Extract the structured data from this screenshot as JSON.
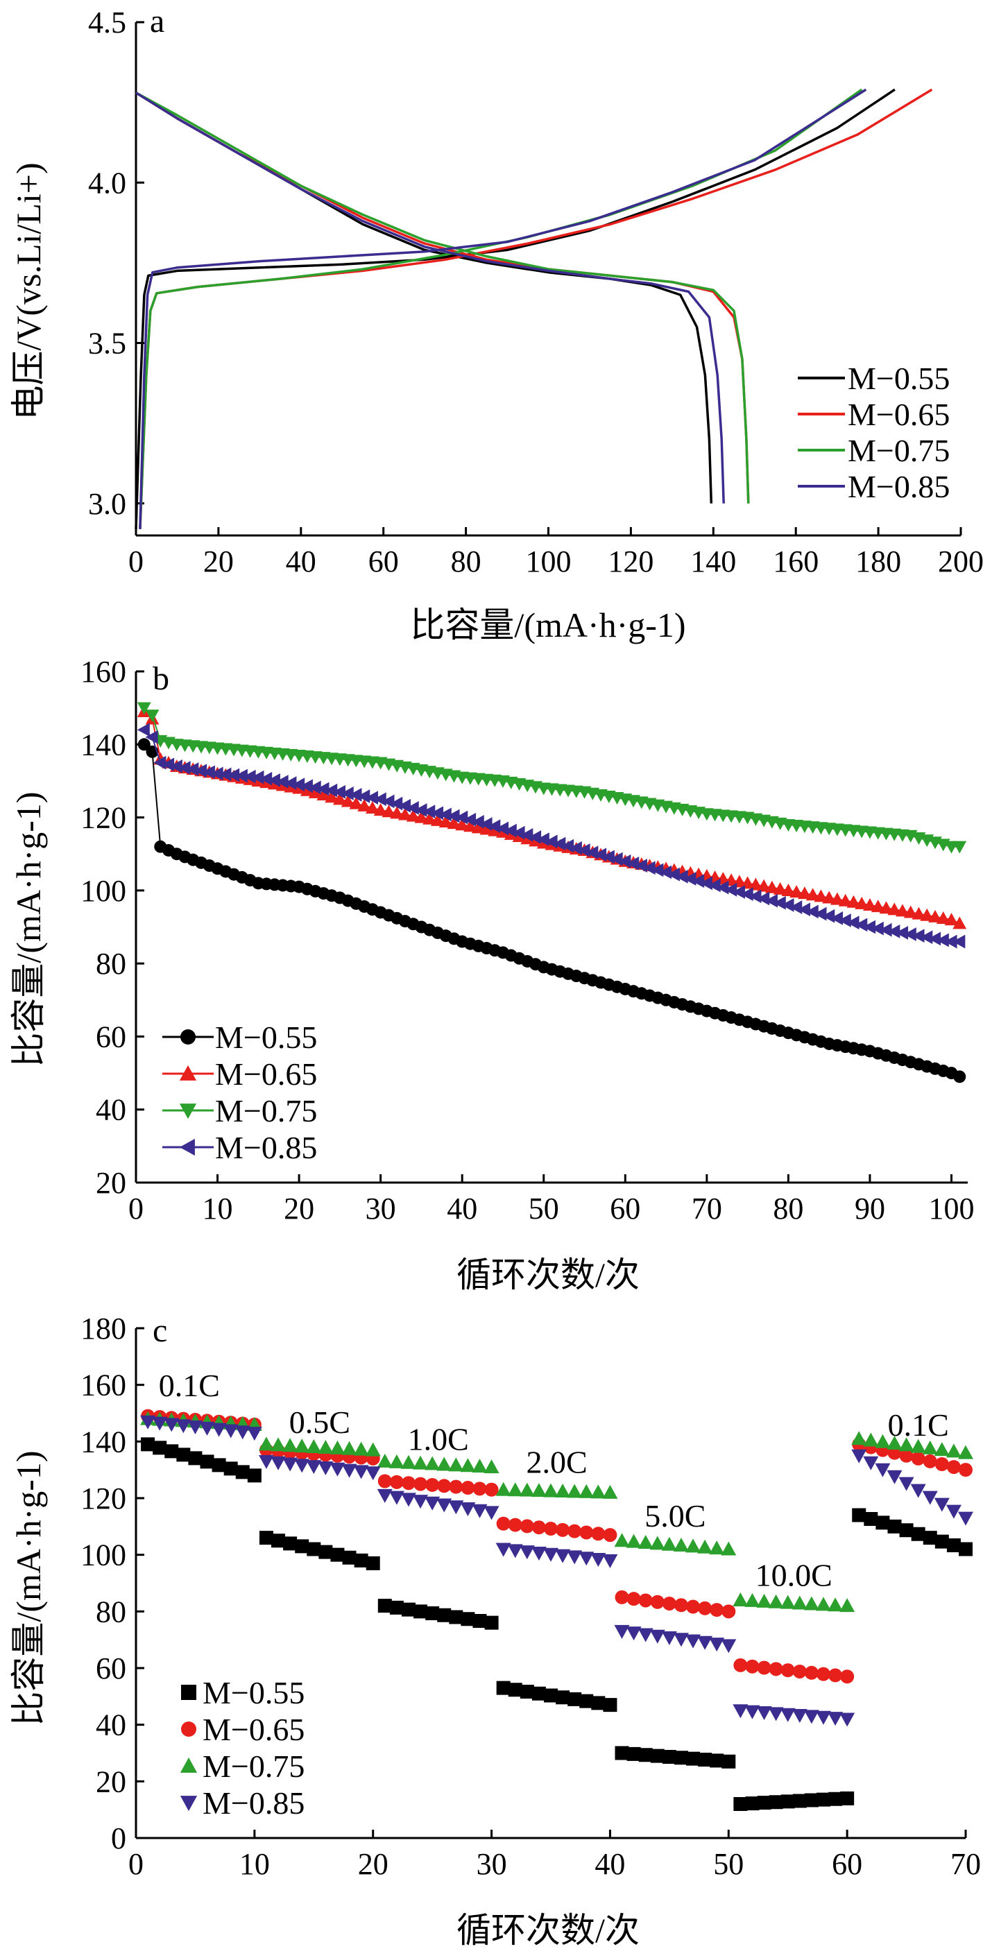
{
  "chart_data": [
    {
      "panel": "a",
      "type": "line",
      "xlabel": "比容量/(mA·h·g-1)",
      "ylabel": "电压/V(vs.Li/Li+)",
      "xlim": [
        0,
        200
      ],
      "ylim": [
        2.9,
        4.5
      ],
      "xticks": [
        0,
        20,
        40,
        60,
        80,
        100,
        120,
        140,
        160,
        180,
        200
      ],
      "yticks": [
        3.0,
        3.5,
        4.0,
        4.5
      ],
      "legend": "bottom-right",
      "series": [
        {
          "name": "M−0.55",
          "color": "#000000",
          "charge": [
            [
              0,
              2.92
            ],
            [
              1.2,
              3.4
            ],
            [
              2,
              3.65
            ],
            [
              3,
              3.71
            ],
            [
              10,
              3.725
            ],
            [
              30,
              3.735
            ],
            [
              50,
              3.745
            ],
            [
              70,
              3.76
            ],
            [
              90,
              3.79
            ],
            [
              110,
              3.85
            ],
            [
              130,
              3.94
            ],
            [
              150,
              4.04
            ],
            [
              170,
              4.17
            ],
            [
              184,
              4.29
            ]
          ],
          "discharge": [
            [
              0,
              4.28
            ],
            [
              10,
              4.2
            ],
            [
              25,
              4.09
            ],
            [
              40,
              3.98
            ],
            [
              55,
              3.87
            ],
            [
              70,
              3.79
            ],
            [
              85,
              3.75
            ],
            [
              100,
              3.72
            ],
            [
              115,
              3.7
            ],
            [
              125,
              3.68
            ],
            [
              132,
              3.65
            ],
            [
              136,
              3.55
            ],
            [
              138,
              3.4
            ],
            [
              139,
              3.2
            ],
            [
              139.5,
              3.0
            ]
          ]
        },
        {
          "name": "M−0.65",
          "color": "#e8201c",
          "charge": [
            [
              1,
              2.92
            ],
            [
              2.5,
              3.4
            ],
            [
              3.5,
              3.6
            ],
            [
              5,
              3.655
            ],
            [
              15,
              3.675
            ],
            [
              35,
              3.7
            ],
            [
              55,
              3.725
            ],
            [
              75,
              3.76
            ],
            [
              95,
              3.81
            ],
            [
              115,
              3.87
            ],
            [
              135,
              3.95
            ],
            [
              155,
              4.04
            ],
            [
              175,
              4.15
            ],
            [
              193,
              4.29
            ]
          ],
          "discharge": [
            [
              0,
              4.28
            ],
            [
              10,
              4.2
            ],
            [
              25,
              4.09
            ],
            [
              40,
              3.99
            ],
            [
              55,
              3.89
            ],
            [
              70,
              3.81
            ],
            [
              85,
              3.76
            ],
            [
              100,
              3.73
            ],
            [
              115,
              3.71
            ],
            [
              130,
              3.69
            ],
            [
              140,
              3.66
            ],
            [
              145,
              3.58
            ],
            [
              147,
              3.45
            ],
            [
              148,
              3.2
            ],
            [
              148.5,
              3.0
            ]
          ]
        },
        {
          "name": "M−0.75",
          "color": "#2ca02c",
          "charge": [
            [
              1,
              2.92
            ],
            [
              2.5,
              3.4
            ],
            [
              3.5,
              3.6
            ],
            [
              5,
              3.655
            ],
            [
              15,
              3.675
            ],
            [
              35,
              3.7
            ],
            [
              55,
              3.73
            ],
            [
              75,
              3.775
            ],
            [
              95,
              3.83
            ],
            [
              115,
              3.9
            ],
            [
              135,
              3.99
            ],
            [
              155,
              4.1
            ],
            [
              176,
              4.29
            ]
          ],
          "discharge": [
            [
              0,
              4.28
            ],
            [
              10,
              4.21
            ],
            [
              25,
              4.1
            ],
            [
              40,
              3.99
            ],
            [
              55,
              3.9
            ],
            [
              70,
              3.82
            ],
            [
              85,
              3.77
            ],
            [
              100,
              3.73
            ],
            [
              115,
              3.71
            ],
            [
              130,
              3.69
            ],
            [
              140,
              3.665
            ],
            [
              145,
              3.6
            ],
            [
              147,
              3.45
            ],
            [
              148,
              3.2
            ],
            [
              148.5,
              3.0
            ]
          ]
        },
        {
          "name": "M−0.85",
          "color": "#3b2d8f",
          "charge": [
            [
              1,
              2.92
            ],
            [
              2,
              3.4
            ],
            [
              2.8,
              3.65
            ],
            [
              4,
              3.72
            ],
            [
              10,
              3.735
            ],
            [
              30,
              3.755
            ],
            [
              50,
              3.77
            ],
            [
              70,
              3.785
            ],
            [
              90,
              3.815
            ],
            [
              110,
              3.88
            ],
            [
              130,
              3.97
            ],
            [
              150,
              4.07
            ],
            [
              177,
              4.29
            ]
          ],
          "discharge": [
            [
              0,
              4.28
            ],
            [
              10,
              4.2
            ],
            [
              25,
              4.09
            ],
            [
              40,
              3.98
            ],
            [
              55,
              3.88
            ],
            [
              70,
              3.8
            ],
            [
              85,
              3.755
            ],
            [
              100,
              3.725
            ],
            [
              115,
              3.7
            ],
            [
              125,
              3.685
            ],
            [
              134,
              3.66
            ],
            [
              139,
              3.58
            ],
            [
              141,
              3.4
            ],
            [
              142,
              3.2
            ],
            [
              142.5,
              3.0
            ]
          ]
        }
      ]
    },
    {
      "panel": "b",
      "type": "line",
      "xlabel": "循环次数/次",
      "ylabel": "比容量/(mA·h·g-1)",
      "xlim": [
        0,
        102
      ],
      "ylim": [
        20,
        160
      ],
      "xticks": [
        0,
        10,
        20,
        30,
        40,
        50,
        60,
        70,
        80,
        90,
        100
      ],
      "yticks": [
        20,
        40,
        60,
        80,
        100,
        120,
        140,
        160
      ],
      "legend": "bottom-left",
      "series": [
        {
          "name": "M−0.55",
          "marker": "circle",
          "color": "#000000",
          "points": [
            [
              1,
              140
            ],
            [
              2,
              138
            ],
            [
              3,
              112
            ],
            [
              5,
              110
            ],
            [
              10,
              106
            ],
            [
              15,
              102
            ],
            [
              20,
              101
            ],
            [
              25,
              98
            ],
            [
              30,
              94
            ],
            [
              35,
              90
            ],
            [
              40,
              86
            ],
            [
              45,
              83
            ],
            [
              50,
              79
            ],
            [
              55,
              76
            ],
            [
              60,
              73
            ],
            [
              65,
              70
            ],
            [
              70,
              67
            ],
            [
              75,
              64
            ],
            [
              80,
              61
            ],
            [
              85,
              58
            ],
            [
              90,
              56
            ],
            [
              95,
              53
            ],
            [
              100,
              50
            ],
            [
              101,
              49
            ]
          ]
        },
        {
          "name": "M−0.65",
          "marker": "triangle-up",
          "color": "#e8201c",
          "points": [
            [
              1,
              149
            ],
            [
              2,
              147
            ],
            [
              3,
              136
            ],
            [
              5,
              134
            ],
            [
              10,
              132
            ],
            [
              15,
              130
            ],
            [
              20,
              128
            ],
            [
              25,
              125
            ],
            [
              30,
              122
            ],
            [
              35,
              120
            ],
            [
              40,
              118
            ],
            [
              45,
              116
            ],
            [
              50,
              113
            ],
            [
              55,
              111
            ],
            [
              60,
              108
            ],
            [
              65,
              106
            ],
            [
              70,
              104
            ],
            [
              75,
              102
            ],
            [
              80,
              100
            ],
            [
              85,
              98
            ],
            [
              90,
              96
            ],
            [
              95,
              94
            ],
            [
              100,
              92
            ],
            [
              101,
              91
            ]
          ]
        },
        {
          "name": "M−0.75",
          "marker": "triangle-down",
          "color": "#2ca02c",
          "points": [
            [
              1,
              150
            ],
            [
              2,
              148
            ],
            [
              3,
              141
            ],
            [
              5,
              140
            ],
            [
              10,
              139
            ],
            [
              15,
              138
            ],
            [
              20,
              137
            ],
            [
              25,
              136
            ],
            [
              30,
              135
            ],
            [
              35,
              133
            ],
            [
              40,
              131
            ],
            [
              45,
              130
            ],
            [
              50,
              128
            ],
            [
              55,
              127
            ],
            [
              60,
              125
            ],
            [
              65,
              123
            ],
            [
              70,
              121
            ],
            [
              75,
              120
            ],
            [
              80,
              118
            ],
            [
              85,
              117
            ],
            [
              90,
              116
            ],
            [
              95,
              115
            ],
            [
              100,
              112
            ],
            [
              101,
              112
            ]
          ]
        },
        {
          "name": "M−0.85",
          "marker": "triangle-left",
          "color": "#3b2d8f",
          "points": [
            [
              1,
              144
            ],
            [
              2,
              142
            ],
            [
              3,
              135
            ],
            [
              5,
              134
            ],
            [
              10,
              132
            ],
            [
              15,
              131
            ],
            [
              20,
              129
            ],
            [
              25,
              127
            ],
            [
              30,
              125
            ],
            [
              35,
              122
            ],
            [
              40,
              120
            ],
            [
              45,
              117
            ],
            [
              50,
              114
            ],
            [
              55,
              111
            ],
            [
              60,
              108
            ],
            [
              65,
              105
            ],
            [
              70,
              102
            ],
            [
              75,
              99
            ],
            [
              80,
              96
            ],
            [
              85,
              93
            ],
            [
              90,
              90
            ],
            [
              95,
              88
            ],
            [
              100,
              86
            ],
            [
              101,
              86
            ]
          ]
        }
      ]
    },
    {
      "panel": "c",
      "type": "scatter",
      "xlabel": "循环次数/次",
      "ylabel": "比容量/(mA·h·g-1)",
      "xlim": [
        0,
        70
      ],
      "ylim": [
        0,
        180
      ],
      "xticks": [
        0,
        10,
        20,
        30,
        40,
        50,
        60,
        70
      ],
      "yticks": [
        0,
        20,
        40,
        60,
        80,
        100,
        120,
        140,
        160,
        180
      ],
      "legend": "bottom-left",
      "rates": [
        {
          "label": "0.1C",
          "x": 4.5,
          "y": 156
        },
        {
          "label": "0.5C",
          "x": 15.5,
          "y": 143
        },
        {
          "label": "1.0C",
          "x": 25.5,
          "y": 137
        },
        {
          "label": "2.0C",
          "x": 35.5,
          "y": 129
        },
        {
          "label": "5.0C",
          "x": 45.5,
          "y": 110
        },
        {
          "label": "10.0C",
          "x": 55.5,
          "y": 89
        },
        {
          "label": "0.1C",
          "x": 66,
          "y": 142
        }
      ],
      "series": [
        {
          "name": "M−0.55",
          "marker": "square",
          "color": "#000000",
          "segments": [
            [
              139,
              128
            ],
            [
              106,
              97
            ],
            [
              82,
              76
            ],
            [
              53,
              47
            ],
            [
              30,
              27
            ],
            [
              12,
              14
            ],
            [
              114,
              102
            ]
          ]
        },
        {
          "name": "M−0.65",
          "marker": "circle",
          "color": "#e8201c",
          "segments": [
            [
              149,
              146
            ],
            [
              137,
              134
            ],
            [
              126,
              123
            ],
            [
              111,
              107
            ],
            [
              85,
              80
            ],
            [
              61,
              57
            ],
            [
              139,
              130
            ]
          ]
        },
        {
          "name": "M−0.75",
          "marker": "triangle-up",
          "color": "#2ca02c",
          "segments": [
            [
              148,
              146
            ],
            [
              139,
              137
            ],
            [
              133,
              131
            ],
            [
              123,
              122
            ],
            [
              105,
              102
            ],
            [
              84,
              82
            ],
            [
              141,
              136
            ]
          ]
        },
        {
          "name": "M−0.85",
          "marker": "triangle-down",
          "color": "#3b2d8f",
          "segments": [
            [
              147,
              143
            ],
            [
              133,
              129
            ],
            [
              121,
              115
            ],
            [
              102,
              98
            ],
            [
              73,
              68
            ],
            [
              45,
              42
            ],
            [
              135,
              113
            ]
          ]
        }
      ]
    }
  ],
  "labels": {
    "panel_a": "a",
    "panel_b": "b",
    "panel_c": "c",
    "a_xlabel": "比容量/(mA·h·g-1)",
    "a_ylabel": "电压/V(vs.Li/Li+)",
    "b_xlabel": "循环次数/次",
    "b_ylabel": "比容量/(mA·h·g-1)",
    "c_xlabel": "循环次数/次",
    "c_ylabel": "比容量/(mA·h·g-1)"
  },
  "legend_labels": [
    "M−0.55",
    "M−0.65",
    "M−0.75",
    "M−0.85"
  ]
}
